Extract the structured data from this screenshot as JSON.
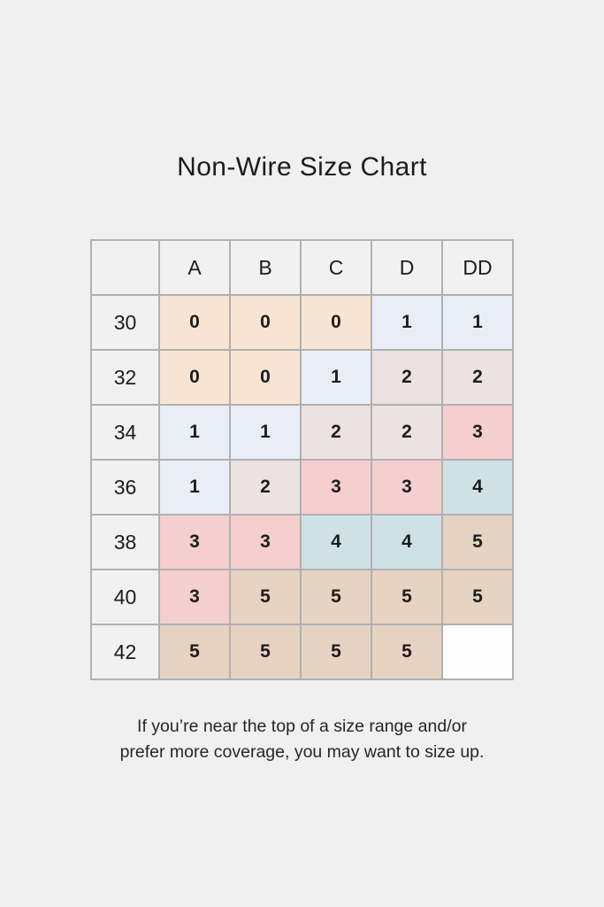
{
  "page": {
    "title": "Non-Wire Size Chart",
    "footnote": {
      "line1": "If you’re near the top of a size range and/or",
      "line2": "prefer more coverage, you may want to size up."
    },
    "background_color": "#f0f0f0"
  },
  "palette": {
    "peach": "#f8e4d3",
    "blue": "#e9eef6",
    "mauve": "#ece2e2",
    "pink": "#f4cfce",
    "teal": "#d0e1e6",
    "tan": "#e7d3c1",
    "empty": "#fcfcfc",
    "header_bg": "#f1f1f1",
    "border": "#b0b0b0"
  },
  "chart_data": {
    "type": "table",
    "title": "Non-Wire Size Chart",
    "column_headers": [
      "",
      "A",
      "B",
      "C",
      "D",
      "DD"
    ],
    "row_headers": [
      "30",
      "32",
      "34",
      "36",
      "38",
      "40",
      "42"
    ],
    "rows": [
      [
        {
          "value": "0",
          "bg": "peach"
        },
        {
          "value": "0",
          "bg": "peach"
        },
        {
          "value": "0",
          "bg": "peach"
        },
        {
          "value": "1",
          "bg": "blue"
        },
        {
          "value": "1",
          "bg": "blue"
        }
      ],
      [
        {
          "value": "0",
          "bg": "peach"
        },
        {
          "value": "0",
          "bg": "peach"
        },
        {
          "value": "1",
          "bg": "blue"
        },
        {
          "value": "2",
          "bg": "mauve"
        },
        {
          "value": "2",
          "bg": "mauve"
        }
      ],
      [
        {
          "value": "1",
          "bg": "blue"
        },
        {
          "value": "1",
          "bg": "blue"
        },
        {
          "value": "2",
          "bg": "mauve"
        },
        {
          "value": "2",
          "bg": "mauve"
        },
        {
          "value": "3",
          "bg": "pink"
        }
      ],
      [
        {
          "value": "1",
          "bg": "blue"
        },
        {
          "value": "2",
          "bg": "mauve"
        },
        {
          "value": "3",
          "bg": "pink"
        },
        {
          "value": "3",
          "bg": "pink"
        },
        {
          "value": "4",
          "bg": "teal"
        }
      ],
      [
        {
          "value": "3",
          "bg": "pink"
        },
        {
          "value": "3",
          "bg": "pink"
        },
        {
          "value": "4",
          "bg": "teal"
        },
        {
          "value": "4",
          "bg": "teal"
        },
        {
          "value": "5",
          "bg": "tan"
        }
      ],
      [
        {
          "value": "3",
          "bg": "pink"
        },
        {
          "value": "5",
          "bg": "tan"
        },
        {
          "value": "5",
          "bg": "tan"
        },
        {
          "value": "5",
          "bg": "tan"
        },
        {
          "value": "5",
          "bg": "tan"
        }
      ],
      [
        {
          "value": "5",
          "bg": "tan"
        },
        {
          "value": "5",
          "bg": "tan"
        },
        {
          "value": "5",
          "bg": "tan"
        },
        {
          "value": "5",
          "bg": "tan"
        },
        {
          "value": "",
          "bg": "empty"
        }
      ]
    ]
  }
}
